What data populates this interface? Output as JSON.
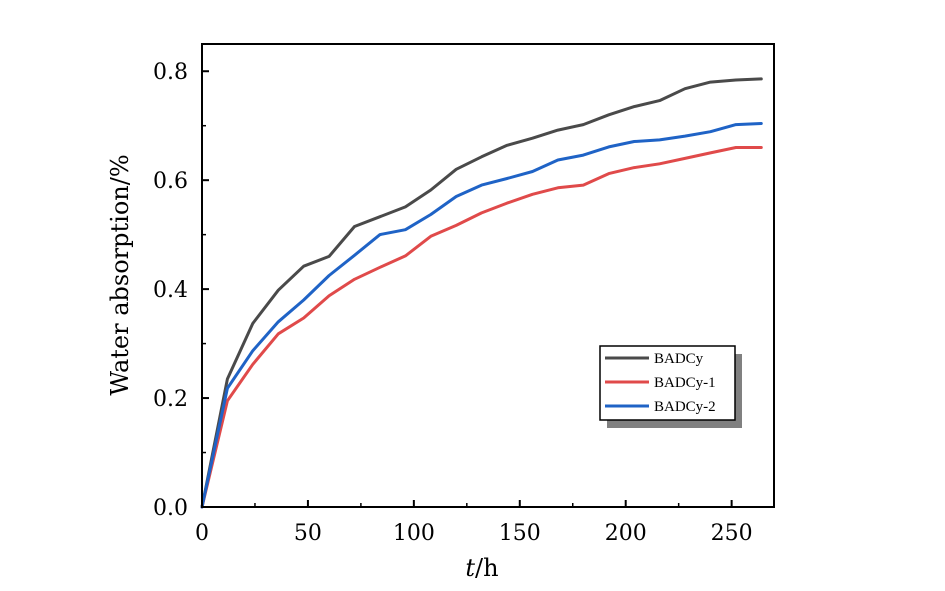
{
  "chart_data": {
    "type": "line",
    "xlabel_italic": "t",
    "xlabel_unit": "/h",
    "ylabel": "Water absorption/%",
    "xlim": [
      0,
      270
    ],
    "ylim": [
      0,
      0.85
    ],
    "xticks": [
      0,
      50,
      100,
      150,
      200,
      250
    ],
    "yticks": [
      0.0,
      0.2,
      0.4,
      0.6,
      0.8
    ],
    "xtick_labels": [
      "0",
      "50",
      "100",
      "150",
      "200",
      "250"
    ],
    "ytick_labels": [
      "0.0",
      "0.2",
      "0.4",
      "0.6",
      "0.8"
    ],
    "grid": false,
    "legend_position": "lower-right",
    "x": [
      0,
      12,
      24,
      36,
      48,
      60,
      72,
      84,
      96,
      108,
      120,
      132,
      144,
      156,
      168,
      180,
      192,
      204,
      216,
      228,
      240,
      252,
      264
    ],
    "series": [
      {
        "name": "BADCy",
        "color": "#4a4a4a",
        "values": [
          0.0,
          0.235,
          0.337,
          0.398,
          0.442,
          0.46,
          0.515,
          0.533,
          0.551,
          0.582,
          0.62,
          0.643,
          0.664,
          0.677,
          0.692,
          0.702,
          0.72,
          0.735,
          0.746,
          0.768,
          0.78,
          0.784,
          0.786
        ]
      },
      {
        "name": "BADCy-1",
        "color": "#e04a4a",
        "values": [
          0.0,
          0.195,
          0.262,
          0.318,
          0.347,
          0.388,
          0.418,
          0.44,
          0.461,
          0.497,
          0.517,
          0.54,
          0.558,
          0.574,
          0.586,
          0.591,
          0.612,
          0.623,
          0.63,
          0.64,
          0.65,
          0.66,
          0.66
        ]
      },
      {
        "name": "BADCy-2",
        "color": "#1f63c6",
        "values": [
          0.0,
          0.218,
          0.287,
          0.34,
          0.38,
          0.425,
          0.462,
          0.5,
          0.509,
          0.537,
          0.57,
          0.591,
          0.603,
          0.616,
          0.637,
          0.646,
          0.661,
          0.671,
          0.674,
          0.681,
          0.689,
          0.702,
          0.704
        ]
      }
    ]
  }
}
